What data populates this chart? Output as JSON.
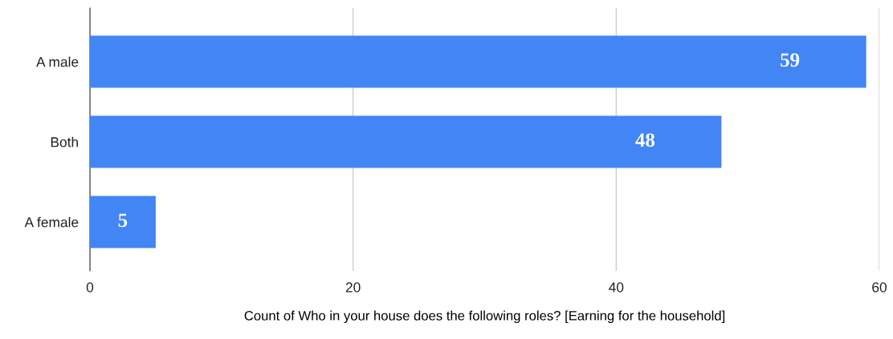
{
  "chart_data": {
    "type": "bar",
    "orientation": "horizontal",
    "categories": [
      "A male",
      "Both",
      "A female"
    ],
    "values": [
      59,
      48,
      5
    ],
    "color": "#4285f4",
    "xlim": [
      0,
      60
    ],
    "xticks": [
      0,
      20,
      40,
      60
    ],
    "grid": "x",
    "data_labels": true,
    "xlabel": "Count of Who in your house does the following roles? [Earning for the household]"
  }
}
